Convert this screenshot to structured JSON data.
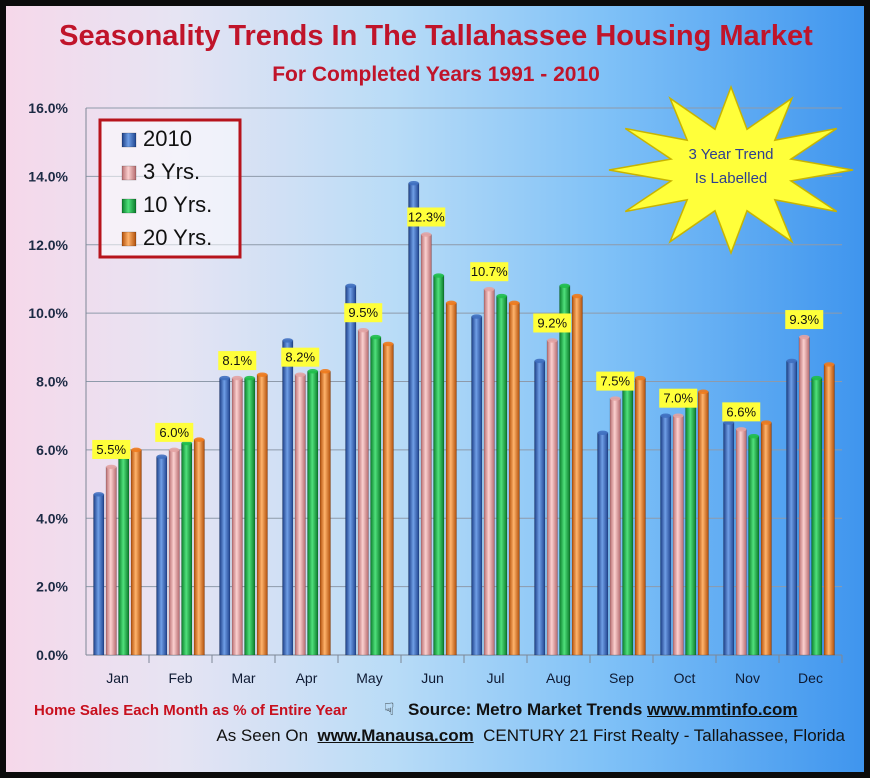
{
  "title": "Seasonality Trends In The Tallahassee Housing Market",
  "subtitle": "For Completed Years 1991 - 2010",
  "burst_text": [
    "3 Year Trend",
    "Is Labelled"
  ],
  "footer": {
    "caption": "Home Sales Each Month as % of Entire Year",
    "source_label": "Source:  Metro Market Trends",
    "source_url": "www.mmtinfo.com",
    "seen_on_label": "As Seen On",
    "seen_on_url": "www.Manausa.com",
    "credit": "CENTURY 21 First Realty - Tallahassee, Florida"
  },
  "icons": {
    "hand": "pointing-hand-icon",
    "burst": "starburst-shape"
  },
  "chart_data": {
    "type": "bar",
    "title": "Seasonality Trends In The Tallahassee Housing Market",
    "subtitle": "For Completed Years 1991 - 2010",
    "categories": [
      "Jan",
      "Feb",
      "Mar",
      "Apr",
      "May",
      "Jun",
      "Jul",
      "Aug",
      "Sep",
      "Oct",
      "Nov",
      "Dec"
    ],
    "series": [
      {
        "name": "2010",
        "color": "#3f6fc0",
        "values": [
          4.7,
          5.8,
          8.1,
          9.2,
          10.8,
          13.8,
          9.9,
          8.6,
          6.5,
          7.0,
          6.8,
          8.6
        ]
      },
      {
        "name": "3 Yrs.",
        "color": "#e3a3a3",
        "values": [
          5.5,
          6.0,
          8.1,
          8.2,
          9.5,
          12.3,
          10.7,
          9.2,
          7.5,
          7.0,
          6.6,
          9.3
        ]
      },
      {
        "name": "10 Yrs.",
        "color": "#1fbf4a",
        "values": [
          5.8,
          6.2,
          8.1,
          8.3,
          9.3,
          11.1,
          10.5,
          10.8,
          7.8,
          7.3,
          6.4,
          8.1
        ]
      },
      {
        "name": "20 Yrs.",
        "color": "#f07a1c",
        "values": [
          6.0,
          6.3,
          8.2,
          8.3,
          9.1,
          10.3,
          10.3,
          10.5,
          8.1,
          7.7,
          6.8,
          8.5
        ]
      }
    ],
    "data_labels": [
      "5.5%",
      "6.0%",
      "8.1%",
      "8.2%",
      "9.5%",
      "12.3%",
      "10.7%",
      "9.2%",
      "7.5%",
      "7.0%",
      "6.6%",
      "9.3%"
    ],
    "labelled_series": "3 Yrs.",
    "ylim": [
      0,
      16
    ],
    "yticks": [
      0,
      2,
      4,
      6,
      8,
      10,
      12,
      14,
      16
    ],
    "ytick_labels": [
      "0.0%",
      "2.0%",
      "4.0%",
      "6.0%",
      "8.0%",
      "10.0%",
      "12.0%",
      "14.0%",
      "16.0%"
    ],
    "grid": true,
    "legend": "top-left"
  }
}
